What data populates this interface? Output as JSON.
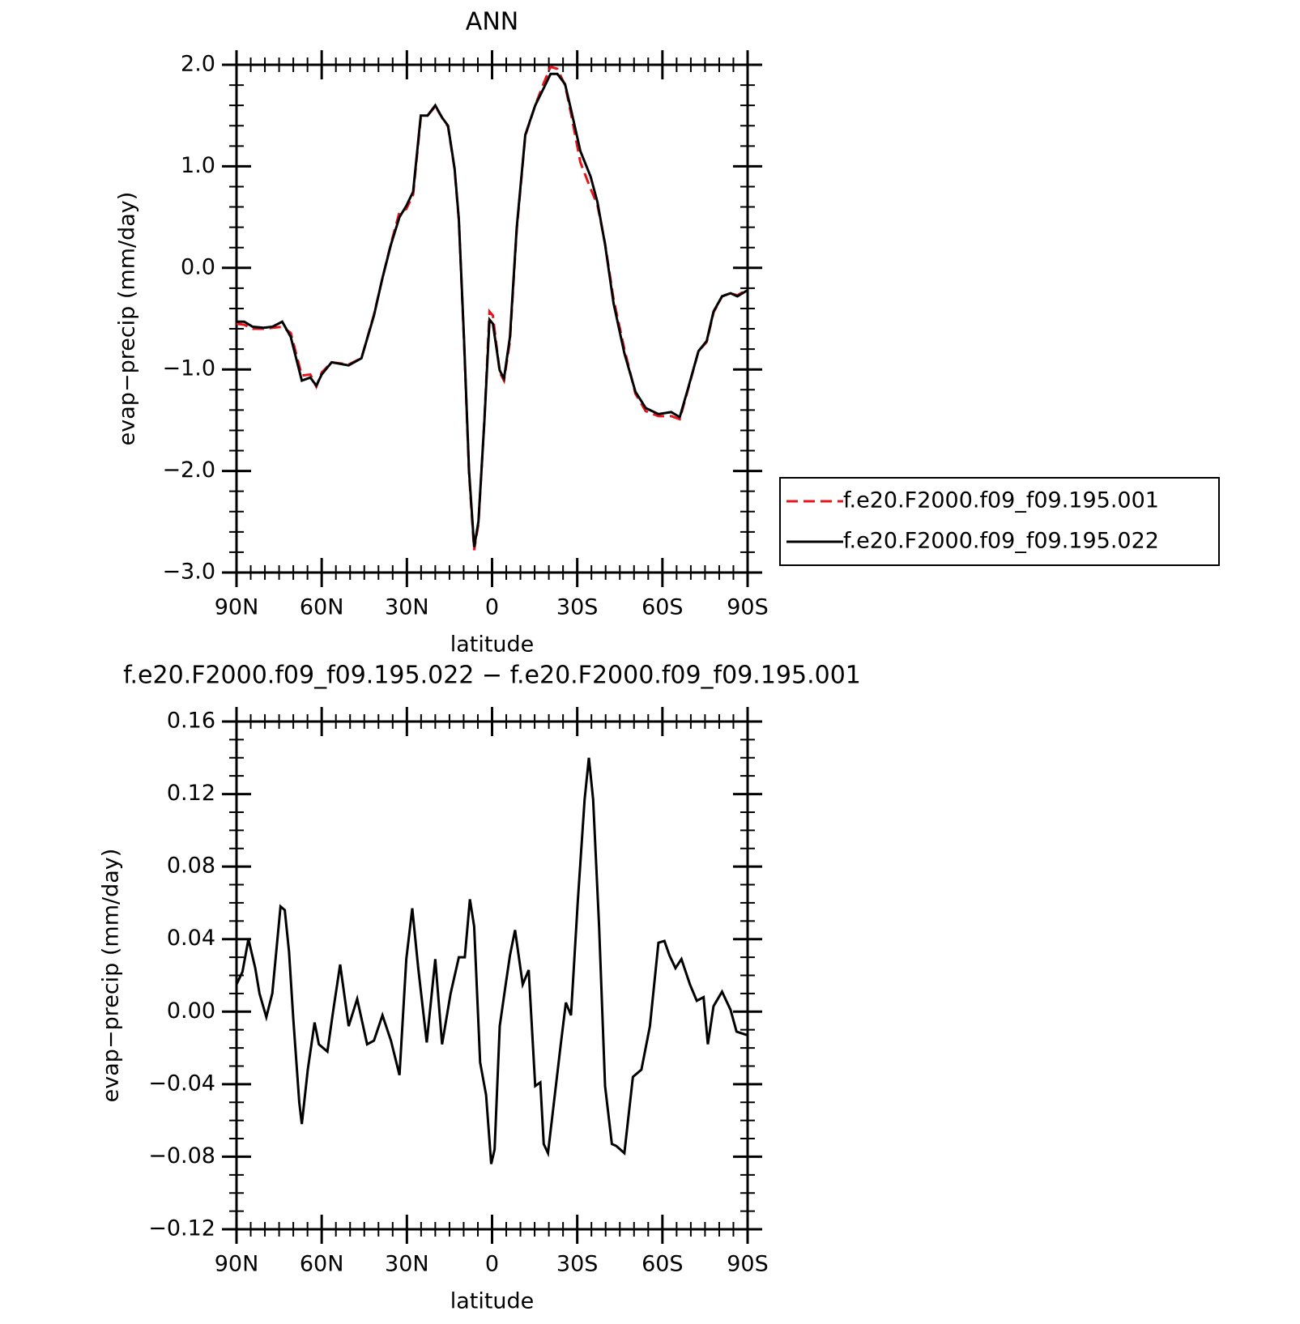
{
  "chart_data": [
    {
      "type": "line",
      "title": "ANN",
      "xlabel": "latitude",
      "ylabel": "evap−precip (mm/day)",
      "x": [
        90,
        87.3,
        84.3,
        80.4,
        77.4,
        73.9,
        70.9,
        67,
        64,
        61.9,
        60,
        56.5,
        50.5,
        46,
        41.6,
        38.6,
        35.6,
        32.6,
        30.2,
        27.8,
        25.1,
        22.7,
        20,
        17.6,
        15.5,
        13.2,
        11.7,
        9.9,
        8.1,
        6.3,
        4.8,
        2.7,
        0.9,
        -0.3,
        -2.7,
        -4.2,
        -6.3,
        -8.7,
        -11.7,
        -15.2,
        -18.2,
        -20.6,
        -23,
        -25.7,
        -27.8,
        -31.1,
        -34.7,
        -37.1,
        -39.8,
        -42.8,
        -46.6,
        -50.5,
        -54.1,
        -58.6,
        -63.1,
        -66.1,
        -69.1,
        -72.7,
        -75.6,
        -78,
        -81,
        -84,
        -86.4,
        -90
      ],
      "series": [
        {
          "name": "f.e20.F2000.f09_f09.195.001",
          "color": "#e8141b",
          "style": "dashed",
          "values": [
            -0.55,
            -0.56,
            -0.6,
            -0.6,
            -0.59,
            -0.58,
            -0.64,
            -1.06,
            -1.05,
            -1.17,
            -1.03,
            -0.93,
            -0.95,
            -0.89,
            -0.46,
            -0.1,
            0.24,
            0.55,
            0.58,
            0.72,
            1.48,
            1.5,
            1.59,
            1.48,
            1.39,
            0.97,
            0.47,
            -0.71,
            -2.03,
            -2.78,
            -2.52,
            -1.5,
            -0.43,
            -0.47,
            -1.03,
            -1.11,
            -0.72,
            0.38,
            1.3,
            1.6,
            1.82,
            1.98,
            1.96,
            1.8,
            1.52,
            1.04,
            0.78,
            0.62,
            0.24,
            -0.31,
            -0.8,
            -1.24,
            -1.41,
            -1.46,
            -1.46,
            -1.49,
            -1.19,
            -0.82,
            -0.73,
            -0.44,
            -0.28,
            -0.25,
            -0.27,
            -0.21
          ]
        },
        {
          "name": "f.e20.F2000.f09_f09.195.022",
          "color": "#000000",
          "style": "solid",
          "values": [
            -0.53,
            -0.53,
            -0.58,
            -0.59,
            -0.58,
            -0.53,
            -0.68,
            -1.11,
            -1.08,
            -1.16,
            -1.05,
            -0.93,
            -0.96,
            -0.89,
            -0.47,
            -0.1,
            0.23,
            0.5,
            0.61,
            0.75,
            1.5,
            1.5,
            1.6,
            1.48,
            1.4,
            0.98,
            0.48,
            -0.68,
            -2.0,
            -2.75,
            -2.5,
            -1.51,
            -0.51,
            -0.55,
            -1.01,
            -1.09,
            -0.68,
            0.4,
            1.31,
            1.6,
            1.77,
            1.91,
            1.91,
            1.81,
            1.56,
            1.15,
            0.9,
            0.65,
            0.23,
            -0.35,
            -0.84,
            -1.22,
            -1.38,
            -1.44,
            -1.42,
            -1.47,
            -1.18,
            -0.82,
            -0.72,
            -0.43,
            -0.28,
            -0.25,
            -0.28,
            -0.22
          ]
        }
      ],
      "xlim": [
        90,
        -90
      ],
      "xticks": [
        {
          "value": 90,
          "label": "90N"
        },
        {
          "value": 60,
          "label": "60N"
        },
        {
          "value": 30,
          "label": "30N"
        },
        0,
        {
          "value": -30,
          "label": "30S"
        },
        {
          "value": -60,
          "label": "60S"
        },
        {
          "value": -90,
          "label": "90S"
        }
      ],
      "ylim": [
        -3,
        2
      ],
      "yticks": [
        {
          "value": -3,
          "label": "−3.0"
        },
        {
          "value": -2,
          "label": "−2.0"
        },
        {
          "value": -1,
          "label": "−1.0"
        },
        {
          "value": 0,
          "label": "0.0"
        },
        {
          "value": 1,
          "label": "1.0"
        },
        {
          "value": 2,
          "label": "2.0"
        }
      ],
      "legend": "outside-right"
    },
    {
      "type": "line",
      "title": "f.e20.F2000.f09_f09.195.022 − f.e20.F2000.f09_f09.195.001",
      "xlabel": "latitude",
      "ylabel": "evap−precip (mm/day)",
      "x": [
        90,
        87.9,
        85.8,
        83.4,
        81.9,
        79.5,
        77.4,
        74.5,
        73,
        71.5,
        70,
        67.9,
        67,
        64.9,
        62.5,
        61,
        58,
        55.9,
        53.5,
        50.5,
        47.5,
        44,
        41.6,
        38.6,
        35.6,
        32.6,
        30.2,
        28.1,
        26,
        23,
        20,
        17.6,
        14.6,
        11.7,
        9.6,
        7.8,
        6.3,
        4.2,
        2.1,
        0.3,
        -0.9,
        -2.7,
        -4.8,
        -6.3,
        -8.1,
        -10.8,
        -12.9,
        -15.2,
        -17,
        -18.2,
        -19.7,
        -21.8,
        -24.2,
        -26,
        -27.8,
        -30.2,
        -32.6,
        -34.1,
        -35.6,
        -37.7,
        -39.8,
        -42.2,
        -43.7,
        -46.6,
        -49.6,
        -52.6,
        -55.6,
        -58.6,
        -60.7,
        -62.5,
        -64.6,
        -66.7,
        -69.7,
        -72.1,
        -74.5,
        -76,
        -78,
        -81,
        -84,
        -86.1,
        -90
      ],
      "series": [
        {
          "color": "#000000",
          "style": "solid",
          "values": [
            0.015,
            0.022,
            0.04,
            0.024,
            0.01,
            -0.003,
            0.01,
            0.058,
            0.056,
            0.033,
            -0.004,
            -0.05,
            -0.062,
            -0.032,
            -0.006,
            -0.018,
            -0.022,
            0.001,
            0.026,
            -0.008,
            0.007,
            -0.018,
            -0.016,
            -0.002,
            -0.016,
            -0.035,
            0.029,
            0.057,
            0.024,
            -0.017,
            0.029,
            -0.018,
            0.01,
            0.03,
            0.03,
            0.062,
            0.047,
            -0.028,
            -0.046,
            -0.084,
            -0.076,
            -0.008,
            0.015,
            0.031,
            0.045,
            0.015,
            0.023,
            -0.041,
            -0.039,
            -0.073,
            -0.078,
            -0.05,
            -0.018,
            0.005,
            -0.002,
            0.061,
            0.117,
            0.14,
            0.117,
            0.047,
            -0.041,
            -0.073,
            -0.074,
            -0.078,
            -0.036,
            -0.032,
            -0.008,
            0.038,
            0.039,
            0.031,
            0.024,
            0.029,
            0.015,
            0.006,
            0.008,
            -0.018,
            0.003,
            0.011,
            0.001,
            -0.011,
            -0.013
          ]
        }
      ],
      "xlim": [
        90,
        -90
      ],
      "xticks": [
        {
          "value": 90,
          "label": "90N"
        },
        {
          "value": 60,
          "label": "60N"
        },
        {
          "value": 30,
          "label": "30N"
        },
        0,
        {
          "value": -30,
          "label": "30S"
        },
        {
          "value": -60,
          "label": "60S"
        },
        {
          "value": -90,
          "label": "90S"
        }
      ],
      "ylim": [
        -0.12,
        0.16
      ],
      "yticks": [
        {
          "value": -0.12,
          "label": "−0.12"
        },
        {
          "value": -0.08,
          "label": "−0.08"
        },
        {
          "value": -0.04,
          "label": "−0.04"
        },
        {
          "value": 0,
          "label": "0.00"
        },
        0.04,
        0.08,
        0.12,
        0.16
      ]
    }
  ]
}
